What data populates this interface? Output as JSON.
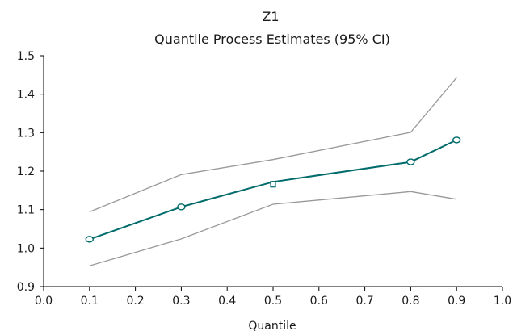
{
  "chart_data": {
    "type": "line",
    "title": "Z1",
    "subtitle": "Quantile Process Estimates (95% CI)",
    "xlabel": "Quantile",
    "ylabel": "",
    "xlim": [
      0.0,
      1.0
    ],
    "ylim": [
      0.9,
      1.5
    ],
    "xticks": [
      "0.0",
      "0.1",
      "0.2",
      "0.3",
      "0.4",
      "0.5",
      "0.6",
      "0.7",
      "0.8",
      "0.9",
      "1.0"
    ],
    "yticks": [
      "0.9",
      "1.0",
      "1.1",
      "1.2",
      "1.3",
      "1.4",
      "1.5"
    ],
    "grid": false,
    "legend": "none",
    "x": [
      0.1,
      0.3,
      0.5,
      0.8,
      0.9
    ],
    "series": [
      {
        "role": "estimate",
        "values": [
          1.023,
          1.107,
          1.172,
          1.224,
          1.281
        ],
        "color": "#006b6b",
        "markers": true
      },
      {
        "role": "upper-ci",
        "values": [
          1.094,
          1.191,
          1.23,
          1.301,
          1.443
        ],
        "color": "#999999",
        "markers": false
      },
      {
        "role": "lower-ci",
        "values": [
          0.954,
          1.024,
          1.114,
          1.147,
          1.127
        ],
        "color": "#999999",
        "markers": false
      }
    ],
    "point_markers": [
      {
        "x": 0.1,
        "y": 1.023,
        "shape": "circle"
      },
      {
        "x": 0.3,
        "y": 1.107,
        "shape": "circle"
      },
      {
        "x": 0.5,
        "y": 1.166,
        "shape": "square"
      },
      {
        "x": 0.8,
        "y": 1.224,
        "shape": "circle"
      },
      {
        "x": 0.9,
        "y": 1.281,
        "shape": "circle"
      }
    ],
    "colors": {
      "axis": "#000000",
      "text": "#1a1a1a",
      "marker_fill": "#ffffff"
    }
  }
}
